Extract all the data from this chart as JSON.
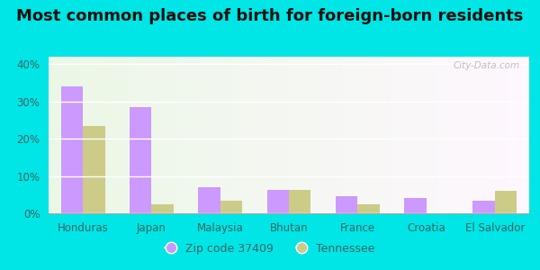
{
  "title": "Most common places of birth for foreign-born residents",
  "categories": [
    "Honduras",
    "Japan",
    "Malaysia",
    "Bhutan",
    "France",
    "Croatia",
    "El Salvador"
  ],
  "zip_values": [
    34.0,
    28.5,
    7.0,
    6.2,
    4.5,
    4.0,
    3.5
  ],
  "state_values": [
    23.5,
    2.5,
    3.5,
    6.2,
    2.5,
    0.0,
    6.0
  ],
  "zip_color": "#cc99ff",
  "state_color": "#cccc88",
  "zip_label": "Zip code 37409",
  "state_label": "Tennessee",
  "ylim": [
    0,
    42
  ],
  "yticks": [
    0,
    10,
    20,
    30,
    40
  ],
  "ytick_labels": [
    "0%",
    "10%",
    "20%",
    "30%",
    "40%"
  ],
  "plot_bg_color": "#e8f5e0",
  "outer_background": "#00e5e5",
  "title_fontsize": 13,
  "axis_fontsize": 8.5,
  "tick_color": "#336666",
  "watermark": "City-Data.com"
}
